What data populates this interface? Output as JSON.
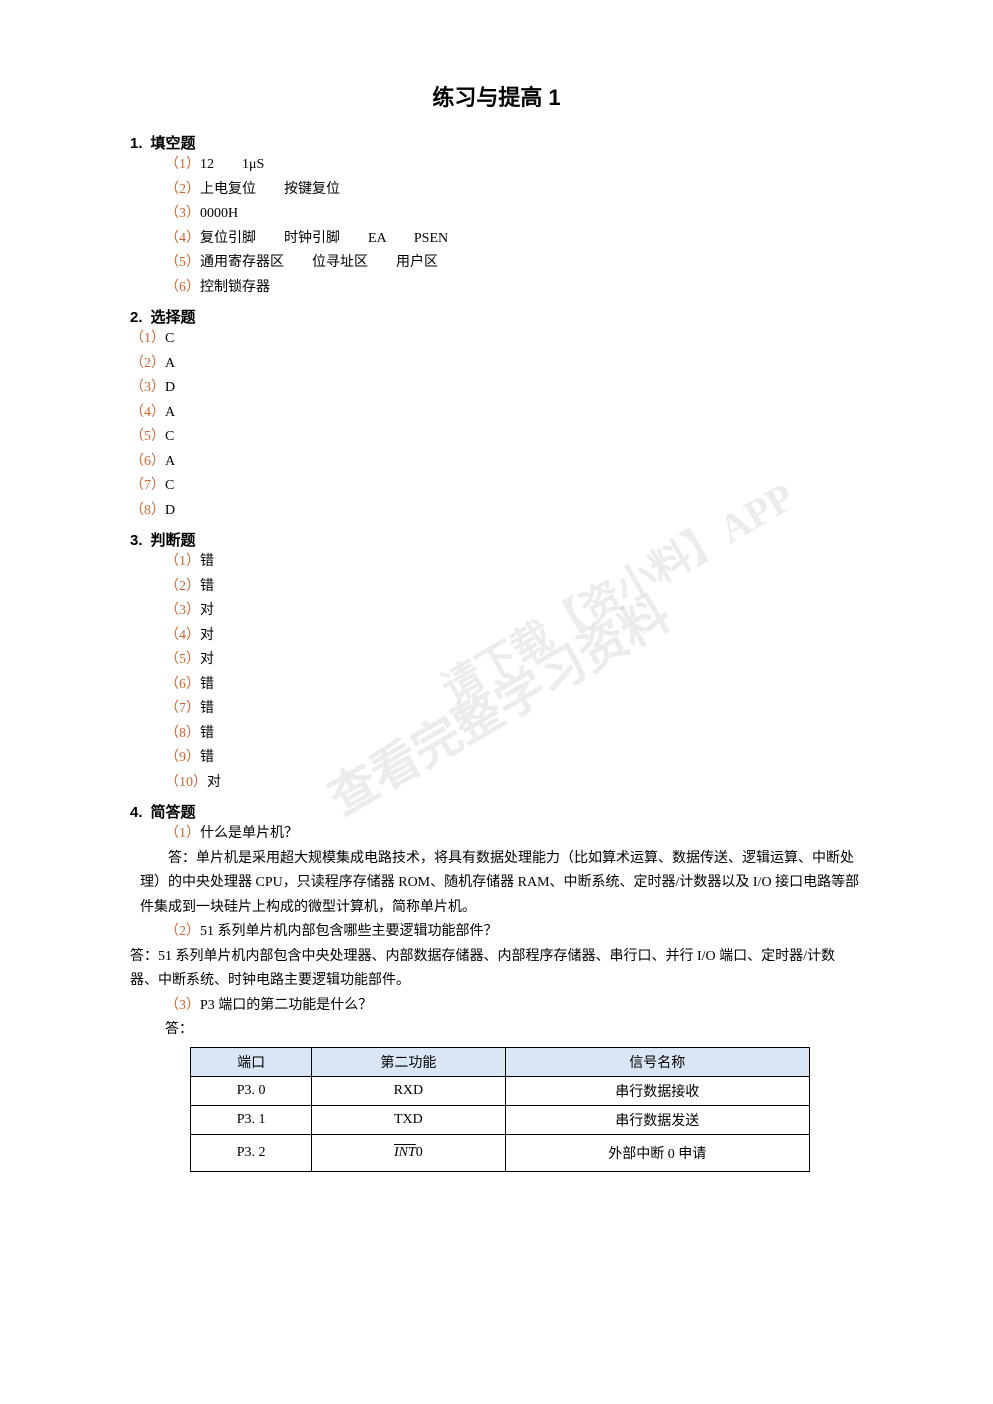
{
  "title": "练习与提高 1",
  "watermark1": "查看完整学习资料",
  "watermark2": "请下载【资小料】APP",
  "section1": {
    "num": "1.",
    "label": "填空题",
    "items": [
      {
        "paren": "（1）",
        "text": "12　　1μS"
      },
      {
        "paren": "（2）",
        "text": "上电复位　　按键复位"
      },
      {
        "paren": "（3）",
        "text": "0000H"
      },
      {
        "paren": "（4）",
        "text": "复位引脚　　时钟引脚　　EA　　PSEN"
      },
      {
        "paren": "（5）",
        "text": "通用寄存器区　　位寻址区　　用户区"
      },
      {
        "paren": "（6）",
        "text": "控制锁存器"
      }
    ]
  },
  "section2": {
    "num": "2.",
    "label": "选择题",
    "items": [
      {
        "paren": "（1）",
        "text": "C"
      },
      {
        "paren": "（2）",
        "text": "A"
      },
      {
        "paren": "（3）",
        "text": "D"
      },
      {
        "paren": "（4）",
        "text": "A"
      },
      {
        "paren": "（5）",
        "text": "C"
      },
      {
        "paren": "（6）",
        "text": "A"
      },
      {
        "paren": "（7）",
        "text": "C"
      },
      {
        "paren": "（8）",
        "text": "D"
      }
    ]
  },
  "section3": {
    "num": "3.",
    "label": "判断题",
    "items": [
      {
        "paren": "（1）",
        "text": "错"
      },
      {
        "paren": "（2）",
        "text": "错"
      },
      {
        "paren": "（3）",
        "text": "对"
      },
      {
        "paren": "（4）",
        "text": "对"
      },
      {
        "paren": "（5）",
        "text": "对"
      },
      {
        "paren": "（6）",
        "text": "错"
      },
      {
        "paren": "（7）",
        "text": "错"
      },
      {
        "paren": "（8）",
        "text": "错"
      },
      {
        "paren": "（9）",
        "text": "错"
      },
      {
        "paren": "（10）",
        "text": "对"
      }
    ]
  },
  "section4": {
    "num": "4.",
    "label": "简答题",
    "q1": {
      "paren": "（1）",
      "question": "什么是单片机？",
      "answer": "答：单片机是采用超大规模集成电路技术，将具有数据处理能力（比如算术运算、数据传送、逻辑运算、中断处理）的中央处理器 CPU，只读程序存储器 ROM、随机存储器 RAM、中断系统、定时器/计数器以及 I/O 接口电路等部件集成到一块硅片上构成的微型计算机，简称单片机。"
    },
    "q2": {
      "paren": "（2）",
      "question": "51 系列单片机内部包含哪些主要逻辑功能部件？",
      "answer": "答：51 系列单片机内部包含中央处理器、内部数据存储器、内部程序存储器、串行口、并行 I/O 端口、定时器/计数器、中断系统、时钟电路主要逻辑功能部件。"
    },
    "q3": {
      "paren": "（3）",
      "question": "P3 端口的第二功能是什么？",
      "answer_label": "答："
    }
  },
  "table": {
    "headers": [
      "端口",
      "第二功能",
      "信号名称"
    ],
    "rows": [
      {
        "port": "P3. 0",
        "func": "RXD",
        "signal": "串行数据接收"
      },
      {
        "port": "P3. 1",
        "func": "TXD",
        "signal": "串行数据发送"
      },
      {
        "port": "P3. 2",
        "func_prefix": "INT",
        "func_suffix": "0",
        "signal": "外部中断 0 申请"
      }
    ],
    "header_bg": "#d9e7f5",
    "border_color": "#000000"
  }
}
